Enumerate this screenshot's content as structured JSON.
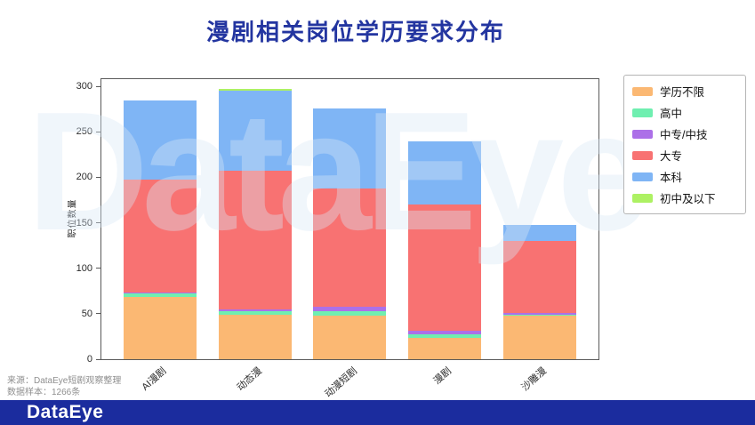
{
  "title": "漫剧相关岗位学历要求分布",
  "watermark_text": "DataEye",
  "source": {
    "line1": "来源：DataEye短剧观察整理",
    "line2": "数据样本：1266条"
  },
  "footer": {
    "logo_text": "DataEye",
    "bar_color": "#1b2c9e"
  },
  "title_color": "#2335a0",
  "chart_data": {
    "type": "bar",
    "stacked": true,
    "title": "漫剧相关岗位学历要求分布",
    "xlabel": "",
    "ylabel": "职位数量",
    "ylim": [
      0,
      308
    ],
    "yticks": [
      0,
      50,
      100,
      150,
      200,
      250,
      300
    ],
    "grid": false,
    "legend_position": "upper right outside",
    "categories": [
      "AI漫剧",
      "动态漫",
      "动漫短剧",
      "漫剧",
      "沙雕漫"
    ],
    "series": [
      {
        "name": "学历不限",
        "color": "#fbb873",
        "values": [
          68,
          49,
          48,
          23,
          48
        ]
      },
      {
        "name": "高中",
        "color": "#6fefb0",
        "values": [
          4,
          4,
          5,
          4,
          1
        ]
      },
      {
        "name": "中专/中技",
        "color": "#ac70e8",
        "values": [
          1,
          2,
          5,
          4,
          2
        ]
      },
      {
        "name": "大专",
        "color": "#f87272",
        "values": [
          125,
          152,
          130,
          139,
          79
        ]
      },
      {
        "name": "本科",
        "color": "#7fb5f5",
        "values": [
          87,
          88,
          88,
          70,
          18
        ]
      },
      {
        "name": "初中及以下",
        "color": "#adf163",
        "values": [
          0,
          2,
          0,
          0,
          0
        ]
      }
    ]
  }
}
